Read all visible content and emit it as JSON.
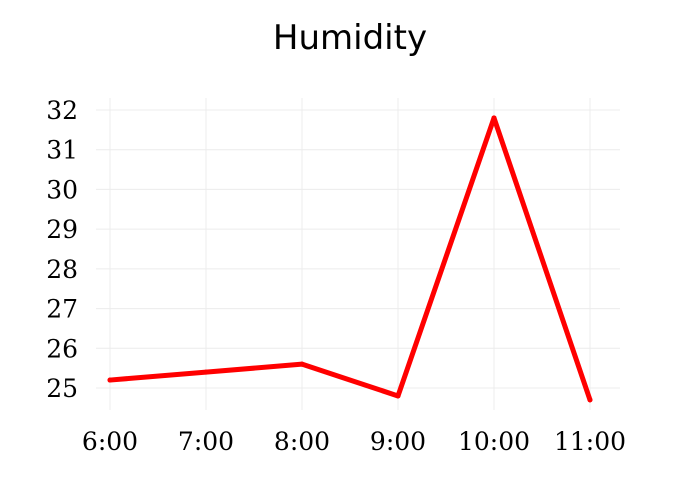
{
  "chart_data": {
    "type": "line",
    "title": "Humidity",
    "xlabel": "",
    "ylabel": "",
    "categories": [
      "6:00",
      "7:00",
      "8:00",
      "9:00",
      "10:00",
      "11:00"
    ],
    "series": [
      {
        "values": [
          25.2,
          25.4,
          25.6,
          24.8,
          31.8,
          24.7
        ],
        "color": "#ff0000"
      }
    ],
    "yticks": [
      25,
      26,
      27,
      28,
      29,
      30,
      31,
      32
    ],
    "ylim": [
      24.7,
      32
    ],
    "grid": true,
    "legend": "none"
  }
}
